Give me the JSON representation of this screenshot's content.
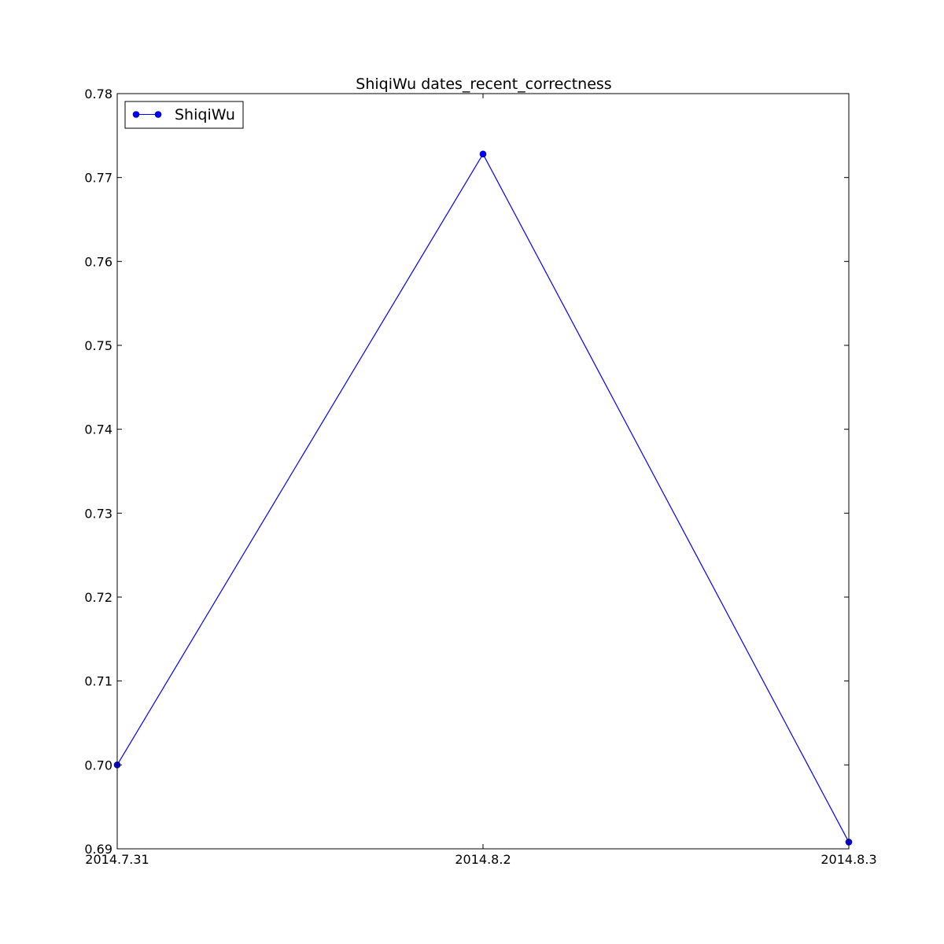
{
  "chart_data": {
    "type": "line",
    "title": "ShiqiWu  dates_recent_correctness",
    "xlabel": "",
    "ylabel": "",
    "categories": [
      "2014.7.31",
      "2014.8.2",
      "2014.8.3"
    ],
    "series": [
      {
        "name": "ShiqiWu",
        "color": "#0000ff",
        "marker": "circle",
        "values": [
          0.7,
          0.7728,
          0.6908
        ]
      }
    ],
    "ylim": [
      0.69,
      0.78
    ],
    "yticks": [
      "0.69",
      "0.70",
      "0.71",
      "0.72",
      "0.73",
      "0.74",
      "0.75",
      "0.76",
      "0.77",
      "0.78"
    ],
    "grid": false,
    "legend": {
      "position": "top-left",
      "entries": [
        "ShiqiWu"
      ]
    }
  }
}
